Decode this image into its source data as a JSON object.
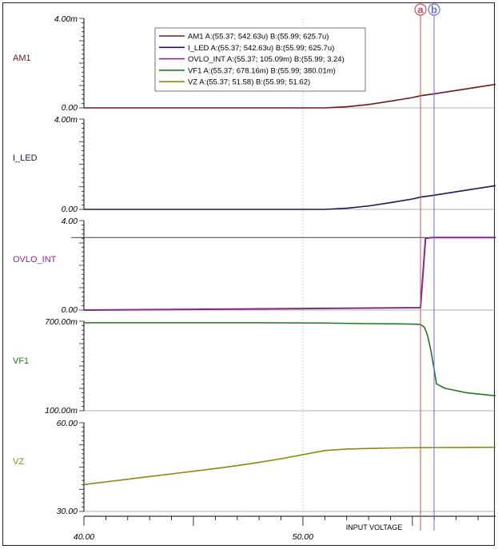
{
  "chart_data": {
    "type": "line",
    "x_axis": {
      "title": "INPUT VOLTAGE",
      "min": 40,
      "max": 58.8,
      "tick_labels": [
        {
          "value": 40,
          "label": "40.00"
        },
        {
          "value": 50,
          "label": "50.00"
        }
      ]
    },
    "cursors": [
      {
        "name": "a",
        "x": 55.37,
        "color": "#d05050"
      },
      {
        "name": "b",
        "x": 55.99,
        "color": "#6b6bd6"
      }
    ],
    "legend": [
      {
        "name": "AM1",
        "text": "AM1  A:(55.37; 542.63u) B:(55.99; 625.7u)",
        "color": "#6b1a1a"
      },
      {
        "name": "I_LED",
        "text": "I_LED  A:(55.37; 542.63u) B:(55.99; 625.7u)",
        "color": "#1a1a55"
      },
      {
        "name": "OVLO_INT",
        "text": "OVLO_INT  A:(55.37; 105.09m) B:(55.99; 3.24)",
        "color": "#8a258a"
      },
      {
        "name": "VF1",
        "text": "VF1  A:(55.37; 678.16m) B:(55.99; 380.01m)",
        "color": "#1f7a1f"
      },
      {
        "name": "VZ",
        "text": "VZ  A:(55.37; 51.58) B:(55.99; 51.62)",
        "color": "#8a8a10"
      }
    ],
    "panels": [
      {
        "name": "AM1",
        "label": "AM1",
        "color": "#6b1a1a",
        "ylim": [
          0,
          0.004
        ],
        "ytick_top": "4.00m",
        "ytick_bottom": "0.00",
        "x": [
          40,
          51,
          52,
          53,
          54,
          55,
          55.37,
          55.99,
          57,
          58.8
        ],
        "y": [
          0,
          0,
          5e-05,
          0.00015,
          0.0003,
          0.00046,
          0.00054263,
          0.0006257,
          0.00078,
          0.00105
        ]
      },
      {
        "name": "I_LED",
        "label": "I_LED",
        "color": "#1a1a55",
        "ylim": [
          0,
          0.004
        ],
        "ytick_top": "4.00m",
        "ytick_bottom": "0.00",
        "x": [
          40,
          51,
          52,
          53,
          54,
          55,
          55.37,
          55.99,
          57,
          58.8
        ],
        "y": [
          0,
          0,
          5e-05,
          0.00015,
          0.0003,
          0.00046,
          0.00054263,
          0.0006257,
          0.00078,
          0.00105
        ]
      },
      {
        "name": "OVLO_INT",
        "label": "OVLO_INT",
        "color": "#8a258a",
        "ylim": [
          0,
          4
        ],
        "ytick_top": "4.00",
        "ytick_bottom": "0.00",
        "reference_line": 3.24,
        "x": [
          40,
          55.37,
          55.6,
          55.8,
          55.9,
          56.0,
          56.1,
          58.8
        ],
        "y": [
          0,
          0.10509,
          3.2,
          3.23,
          3.24,
          3.24,
          3.24,
          3.24
        ]
      },
      {
        "name": "VF1",
        "label": "VF1",
        "color": "#1f7a1f",
        "ylim": [
          0.1,
          0.7
        ],
        "ytick_top": "700.00m",
        "ytick_bottom": "100.00m",
        "x": [
          40,
          48,
          51,
          53,
          54.5,
          55.2,
          55.37,
          55.55,
          55.7,
          55.85,
          55.99,
          56.1,
          56.5,
          57.5,
          58.8
        ],
        "y": [
          0.69,
          0.69,
          0.688,
          0.684,
          0.682,
          0.68,
          0.678,
          0.66,
          0.6,
          0.5,
          0.38,
          0.28,
          0.25,
          0.22,
          0.2
        ]
      },
      {
        "name": "VZ",
        "label": "VZ",
        "color": "#8a8a10",
        "ylim": [
          30,
          60
        ],
        "ytick_top": "60.00",
        "ytick_bottom": "30.00",
        "x": [
          40,
          41,
          42,
          43,
          44,
          45,
          46,
          47,
          48,
          49,
          50,
          51,
          52,
          53,
          54,
          55,
          55.37,
          55.99,
          57,
          58.8
        ],
        "y": [
          39.1,
          40.0,
          40.9,
          41.8,
          42.7,
          43.6,
          44.5,
          45.5,
          46.6,
          47.8,
          49.2,
          50.6,
          51.1,
          51.3,
          51.45,
          51.55,
          51.58,
          51.62,
          51.65,
          51.7
        ]
      }
    ]
  }
}
